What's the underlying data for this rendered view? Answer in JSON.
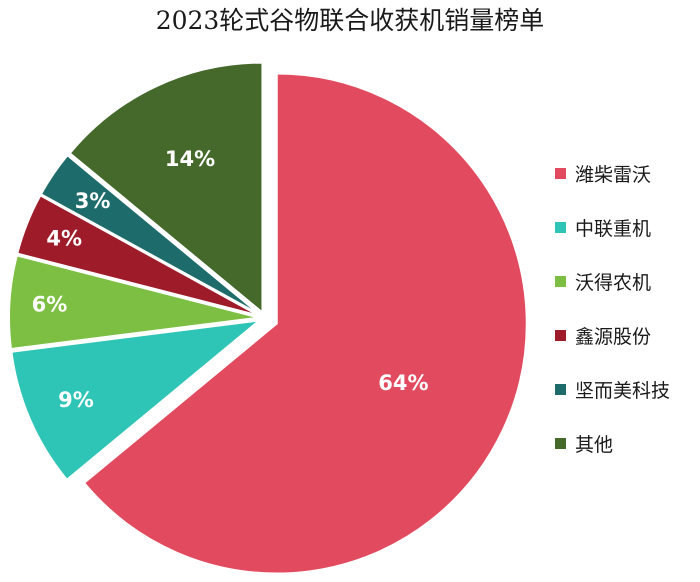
{
  "title": "2023轮式谷物联合收获机销量榜单",
  "chart_data": {
    "type": "pie",
    "title": "2023轮式谷物联合收获机销量榜单",
    "legend_position": "right",
    "start_angle": "12 o'clock, clockwise",
    "exploded": true,
    "slices": [
      {
        "name": "潍柴雷沃",
        "value": 64,
        "label": "64%",
        "color": "#e24b5f"
      },
      {
        "name": "中联重机",
        "value": 9,
        "label": "9%",
        "color": "#2ec4b6"
      },
      {
        "name": "沃得农机",
        "value": 6,
        "label": "6%",
        "color": "#7cbf42"
      },
      {
        "name": "鑫源股份",
        "value": 4,
        "label": "4%",
        "color": "#9e1b2a"
      },
      {
        "name": "坚而美科技",
        "value": 3,
        "label": "3%",
        "color": "#1d6b6a"
      },
      {
        "name": "其他",
        "value": 14,
        "label": "14%",
        "color": "#44692a"
      }
    ]
  }
}
